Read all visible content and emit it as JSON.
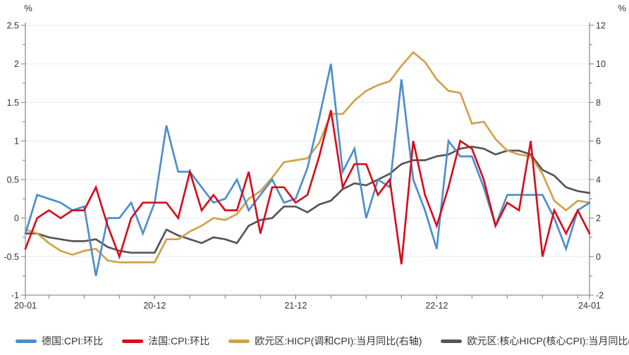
{
  "axes": {
    "left": {
      "unit": "%",
      "tick_labels": [
        "2.5",
        "2",
        "1.5",
        "1",
        "0.5",
        "0",
        "-0.5",
        "-1"
      ],
      "minor_step": 0.25
    },
    "right": {
      "unit": "%",
      "tick_labels": [
        "12",
        "10",
        "8",
        "6",
        "4",
        "2",
        "0",
        "-2"
      ],
      "minor_step": 1
    },
    "x": {
      "labeled_ticks": [
        {
          "label": "20-01",
          "index": 0
        },
        {
          "label": "20-12",
          "index": 11
        },
        {
          "label": "21-12",
          "index": 23
        },
        {
          "label": "22-12",
          "index": 35
        },
        {
          "label": "24-01",
          "index": 48
        }
      ]
    }
  },
  "colors": {
    "germany": "#4e8ecd",
    "france": "#d5101e",
    "hicp": "#d2a24a",
    "core_hicp": "#565656",
    "grid": "#e3eaf4",
    "axis": "#8f8f8f",
    "text": "#333333"
  },
  "chart_data": {
    "type": "line",
    "grid": "horizontal-only",
    "left_ylim": [
      -1,
      2.5
    ],
    "right_ylim": [
      -2,
      12
    ],
    "x": [
      "2020-01",
      "2020-02",
      "2020-03",
      "2020-04",
      "2020-05",
      "2020-06",
      "2020-07",
      "2020-08",
      "2020-09",
      "2020-10",
      "2020-11",
      "2020-12",
      "2021-01",
      "2021-02",
      "2021-03",
      "2021-04",
      "2021-05",
      "2021-06",
      "2021-07",
      "2021-08",
      "2021-09",
      "2021-10",
      "2021-11",
      "2021-12",
      "2022-01",
      "2022-02",
      "2022-03",
      "2022-04",
      "2022-05",
      "2022-06",
      "2022-07",
      "2022-08",
      "2022-09",
      "2022-10",
      "2022-11",
      "2022-12",
      "2023-01",
      "2023-02",
      "2023-03",
      "2023-04",
      "2023-05",
      "2023-06",
      "2023-07",
      "2023-08",
      "2023-09",
      "2023-10",
      "2023-11",
      "2023-12",
      "2024-01"
    ],
    "series": [
      {
        "name": "德国:CPI:环比",
        "axis": "left",
        "color_key": "germany",
        "values": [
          -0.2,
          0.3,
          0.25,
          0.2,
          0.1,
          0.15,
          -0.75,
          0.0,
          0.0,
          0.2,
          -0.2,
          0.2,
          1.2,
          0.6,
          0.6,
          0.4,
          0.2,
          0.25,
          0.5,
          0.1,
          0.3,
          0.5,
          0.2,
          0.25,
          0.65,
          1.3,
          2.0,
          0.6,
          0.9,
          0.0,
          0.5,
          0.4,
          1.8,
          0.5,
          0.1,
          -0.4,
          1.0,
          0.8,
          0.8,
          0.4,
          -0.1,
          0.3,
          0.3,
          0.3,
          0.3,
          0.0,
          -0.4,
          0.1,
          0.2
        ]
      },
      {
        "name": "法国:CPI:环比",
        "axis": "left",
        "color_key": "france",
        "values": [
          -0.4,
          0.0,
          0.1,
          0.0,
          0.1,
          0.1,
          0.4,
          -0.1,
          -0.5,
          0.0,
          0.2,
          0.2,
          0.2,
          0.0,
          0.6,
          0.1,
          0.3,
          0.1,
          0.1,
          0.6,
          -0.2,
          0.4,
          0.4,
          0.2,
          0.3,
          0.8,
          1.4,
          0.4,
          0.7,
          0.7,
          0.3,
          0.5,
          -0.6,
          1.0,
          0.3,
          -0.1,
          0.4,
          1.0,
          0.9,
          0.5,
          -0.1,
          0.2,
          0.1,
          1.0,
          -0.5,
          0.1,
          -0.2,
          0.1,
          -0.2
        ]
      },
      {
        "name": "欧元区:HICP(调和CPI):当月同比(右轴)",
        "axis": "right",
        "color_key": "hicp",
        "values": [
          1.4,
          1.2,
          0.7,
          0.3,
          0.1,
          0.3,
          0.4,
          -0.2,
          -0.3,
          -0.3,
          -0.3,
          -0.3,
          0.9,
          0.9,
          1.3,
          1.6,
          2.0,
          1.9,
          2.2,
          3.0,
          3.4,
          4.1,
          4.9,
          5.0,
          5.1,
          5.9,
          7.4,
          7.4,
          8.1,
          8.6,
          8.9,
          9.1,
          9.9,
          10.6,
          10.1,
          9.2,
          8.6,
          8.5,
          6.9,
          7.0,
          6.1,
          5.5,
          5.3,
          5.2,
          4.3,
          2.9,
          2.4,
          2.9,
          2.8
        ]
      },
      {
        "name": "欧元区:核心HICP(核心CPI):当月同比(右轴)",
        "axis": "right",
        "color_key": "core_hicp",
        "values": [
          1.2,
          1.2,
          1.0,
          0.9,
          0.8,
          0.8,
          0.9,
          0.5,
          0.3,
          0.2,
          0.2,
          0.2,
          1.4,
          1.1,
          0.9,
          0.7,
          1.0,
          0.9,
          0.7,
          1.6,
          1.9,
          2.0,
          2.6,
          2.6,
          2.3,
          2.7,
          2.9,
          3.5,
          3.8,
          3.7,
          4.0,
          4.3,
          4.8,
          5.0,
          5.0,
          5.2,
          5.3,
          5.6,
          5.7,
          5.6,
          5.3,
          5.5,
          5.5,
          5.3,
          4.5,
          4.2,
          3.6,
          3.4,
          3.3
        ]
      }
    ]
  },
  "legend": {
    "items": [
      {
        "label": "德国:CPI:环比",
        "color_key": "germany"
      },
      {
        "label": "法国:CPI:环比",
        "color_key": "france"
      },
      {
        "label": "欧元区:HICP(调和CPI):当月同比(右轴)",
        "color_key": "hicp"
      },
      {
        "label": "欧元区:核心HICP(核心CPI):当月同比(右轴)",
        "color_key": "core_hicp"
      }
    ]
  }
}
